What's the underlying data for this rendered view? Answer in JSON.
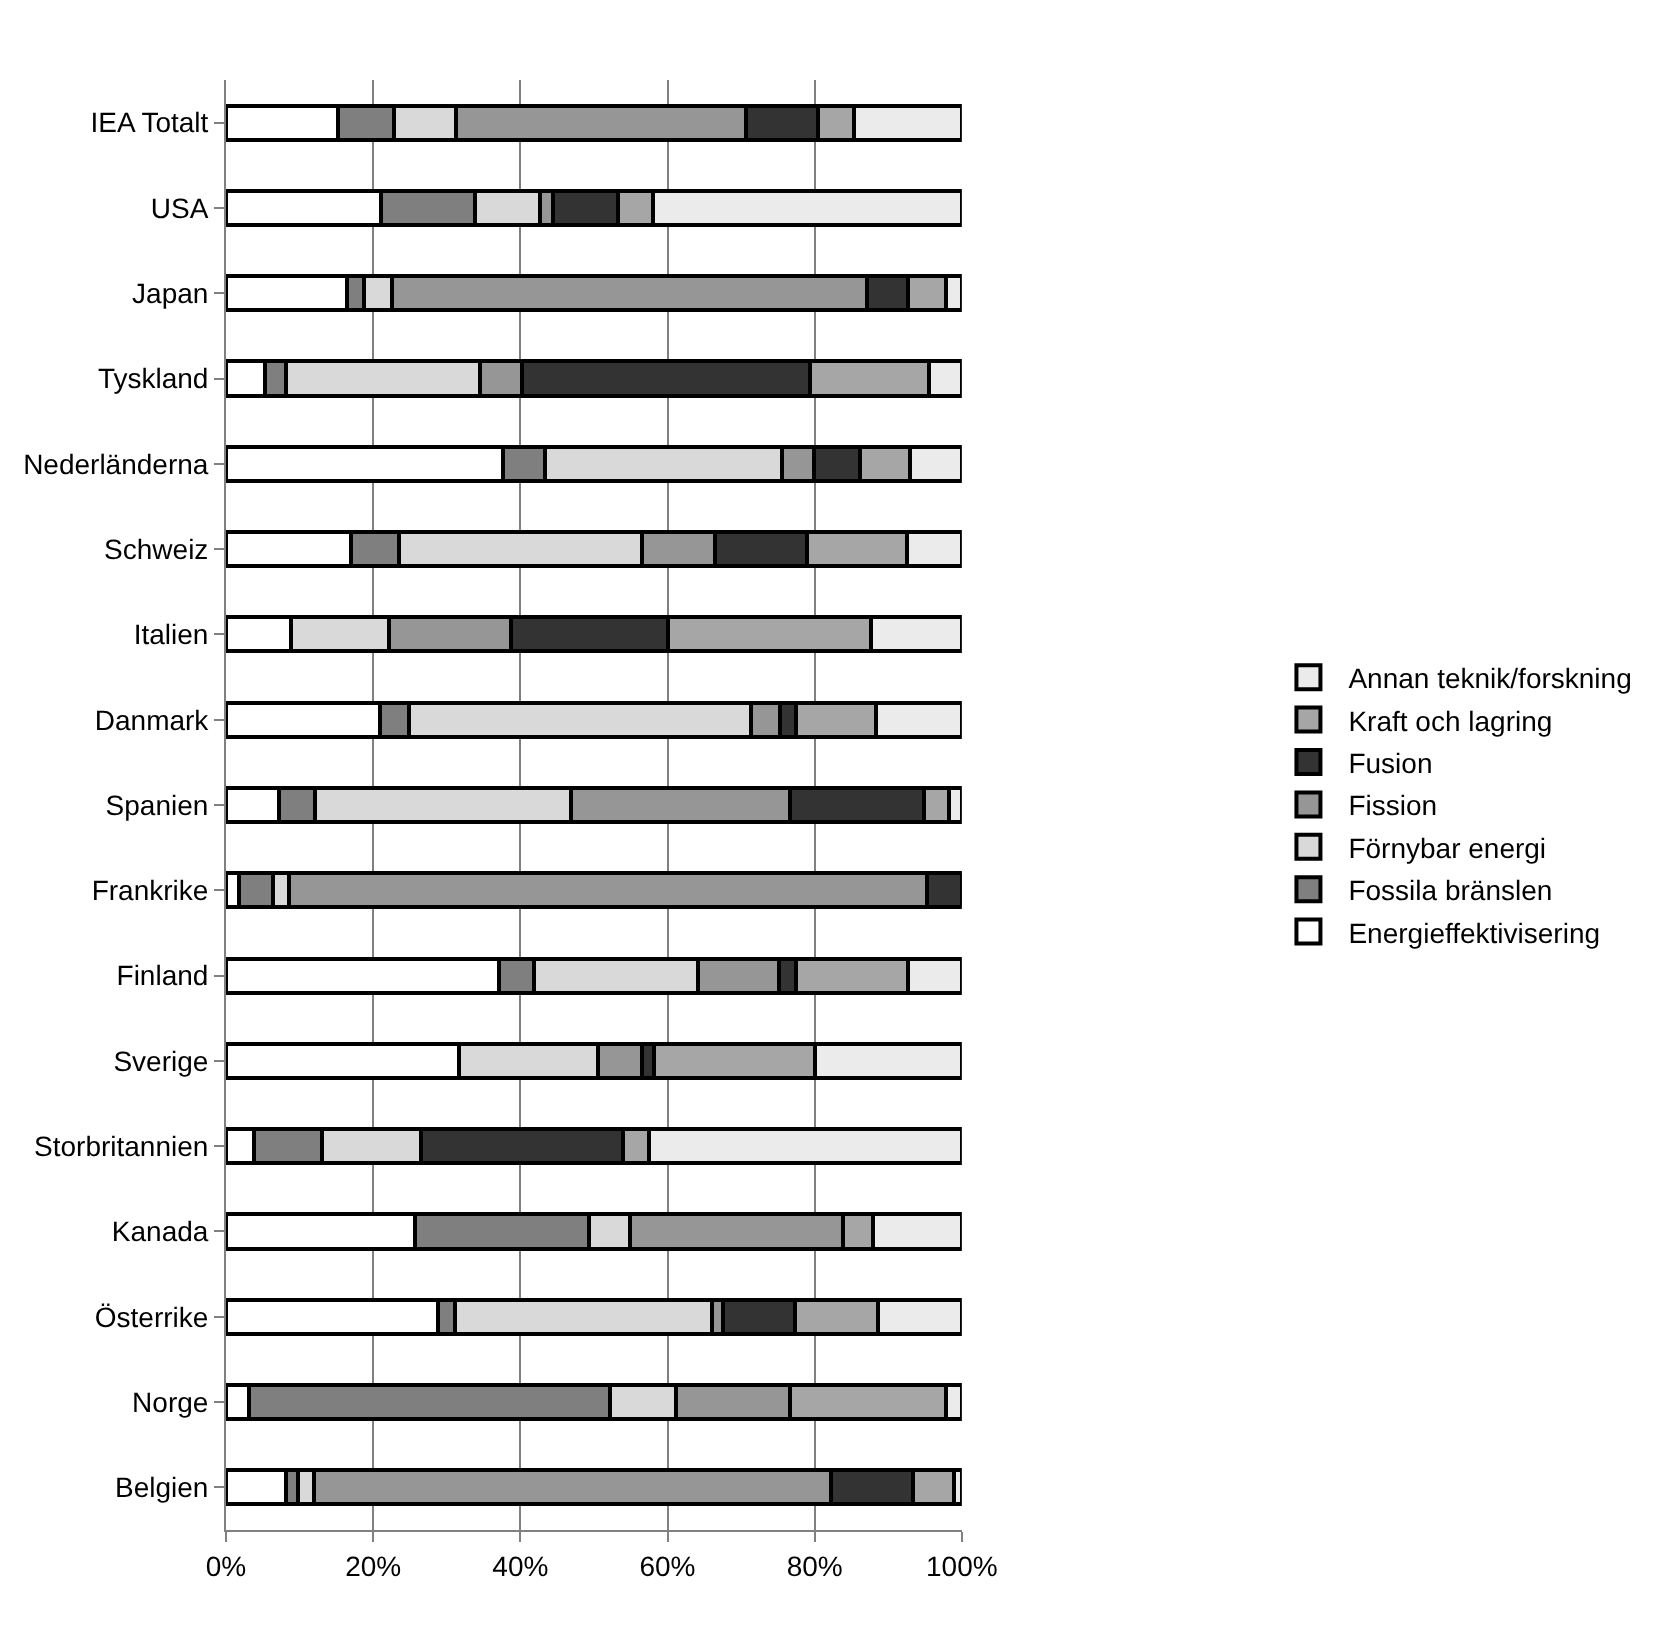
{
  "chart_data": {
    "type": "bar",
    "orientation": "horizontal",
    "stacked": true,
    "categories": [
      "IEA Totalt",
      "USA",
      "Japan",
      "Tyskland",
      "Nederländerna",
      "Schweiz",
      "Italien",
      "Danmark",
      "Spanien",
      "Frankrike",
      "Finland",
      "Sverige",
      "Storbritannien",
      "Kanada",
      "Österrike",
      "Norge",
      "Belgien"
    ],
    "series": [
      {
        "name": "Energieffektivisering",
        "color": "#ffffff",
        "values": [
          15.2,
          21.1,
          16.5,
          5.3,
          37.7,
          17.0,
          8.8,
          20.9,
          7.2,
          1.8,
          37.1,
          31.7,
          3.8,
          25.7,
          28.8,
          3.1,
          8.1
        ]
      },
      {
        "name": "Fossila bränslen",
        "color": "#7f7f7f",
        "values": [
          7.6,
          12.7,
          2.2,
          2.8,
          5.6,
          6.5,
          null,
          4.0,
          4.9,
          4.6,
          4.8,
          null,
          9.2,
          23.6,
          2.3,
          49.1,
          1.7
        ]
      },
      {
        "name": "Förnybar energi",
        "color": "#d9d9d9",
        "values": [
          8.5,
          8.9,
          3.8,
          26.4,
          32.3,
          33.0,
          13.3,
          46.4,
          34.8,
          2.1,
          22.2,
          18.8,
          13.5,
          5.6,
          35.0,
          8.9,
          2.1
        ]
      },
      {
        "name": "Fission",
        "color": "#969696",
        "values": [
          39.3,
          1.8,
          64.6,
          5.7,
          4.3,
          9.9,
          16.6,
          4.0,
          29.8,
          86.7,
          11.0,
          6.0,
          null,
          28.9,
          1.4,
          15.6,
          70.3
        ]
      },
      {
        "name": "Fusion",
        "color": "#333333",
        "values": [
          9.8,
          8.8,
          5.6,
          39.2,
          6.2,
          12.6,
          21.4,
          2.1,
          18.2,
          4.8,
          2.3,
          1.6,
          27.5,
          null,
          9.8,
          null,
          11.2
        ]
      },
      {
        "name": "Kraft och lagring",
        "color": "#a6a6a6",
        "values": [
          4.9,
          4.7,
          5.1,
          16.1,
          6.9,
          13.5,
          27.6,
          11.0,
          3.3,
          null,
          15.3,
          22.0,
          3.5,
          4.1,
          11.3,
          21.1,
          5.5
        ]
      },
      {
        "name": "Annan teknik/forskning",
        "color": "#ebebeb",
        "values": [
          14.7,
          42.0,
          2.2,
          4.5,
          7.0,
          7.5,
          12.3,
          11.6,
          1.8,
          null,
          7.3,
          19.9,
          42.5,
          12.1,
          11.4,
          2.2,
          1.1
        ]
      }
    ],
    "xlim": [
      0,
      100
    ],
    "xticks": [
      {
        "value": 0,
        "label": "0%"
      },
      {
        "value": 20,
        "label": "20%"
      },
      {
        "value": 40,
        "label": "40%"
      },
      {
        "value": 60,
        "label": "60%"
      },
      {
        "value": 80,
        "label": "80%"
      },
      {
        "value": 100,
        "label": "100%"
      }
    ],
    "grid": "x",
    "legend": "right"
  }
}
